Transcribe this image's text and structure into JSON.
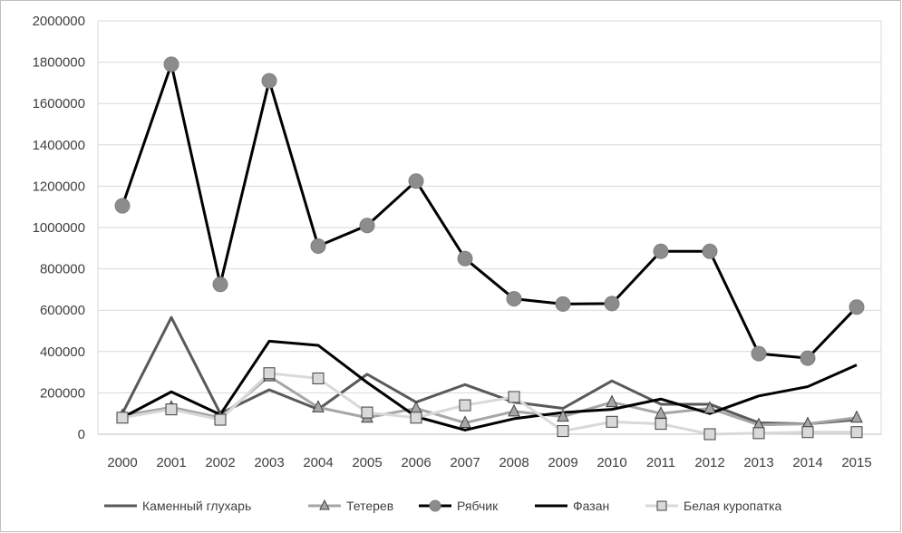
{
  "chart_data": {
    "type": "line",
    "title": "",
    "xlabel": "",
    "ylabel": "",
    "x": [
      2000,
      2001,
      2002,
      2003,
      2004,
      2005,
      2006,
      2007,
      2008,
      2009,
      2010,
      2011,
      2012,
      2013,
      2014,
      2015
    ],
    "ylim": [
      0,
      2000000
    ],
    "yticks": [
      "0",
      "200000",
      "400000",
      "600000",
      "800000",
      "1000000",
      "1200000",
      "1400000",
      "1600000",
      "1800000",
      "2000000"
    ],
    "grid": "horizontal",
    "legend_position": "bottom",
    "series": [
      {
        "name": "Каменный глухарь",
        "color": "#595959",
        "marker": "none",
        "values": [
          100000,
          565000,
          100000,
          215000,
          120000,
          290000,
          155000,
          240000,
          155000,
          125000,
          258000,
          145000,
          145000,
          55000,
          50000,
          70000
        ]
      },
      {
        "name": "Тетерев",
        "color": "#a6a6a6",
        "marker": "triangle",
        "values": [
          90000,
          130000,
          80000,
          280000,
          130000,
          80000,
          125000,
          55000,
          110000,
          85000,
          155000,
          100000,
          125000,
          45000,
          50000,
          80000
        ]
      },
      {
        "name": "Рябчик",
        "color": "#000000",
        "marker": "circle",
        "values": [
          1105000,
          1790000,
          725000,
          1710000,
          910000,
          1010000,
          1225000,
          850000,
          655000,
          630000,
          632000,
          885000,
          885000,
          390000,
          368000,
          615000
        ]
      },
      {
        "name": "Фазан",
        "color": "#000000",
        "marker": "none",
        "values": [
          80000,
          205000,
          95000,
          450000,
          430000,
          250000,
          85000,
          20000,
          75000,
          105000,
          120000,
          170000,
          100000,
          185000,
          230000,
          335000
        ]
      },
      {
        "name": "Белая куропатка",
        "color": "#d9d9d9",
        "marker": "square",
        "values": [
          80000,
          120000,
          70000,
          295000,
          270000,
          105000,
          80000,
          140000,
          180000,
          15000,
          60000,
          50000,
          0,
          5000,
          10000,
          10000
        ]
      }
    ]
  }
}
